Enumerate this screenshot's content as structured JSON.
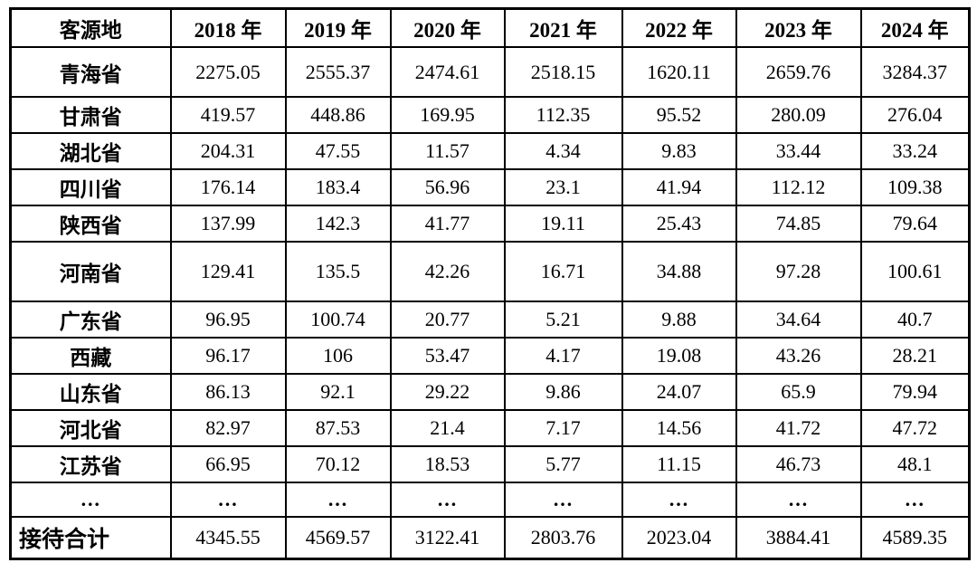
{
  "table": {
    "header": {
      "region_label": "客源地",
      "years": [
        "2018 年",
        "2019 年",
        "2020 年",
        "2021 年",
        "2022 年",
        "2023 年",
        "2024 年"
      ]
    },
    "rows": [
      {
        "region": "青海省",
        "values": [
          "2275.05",
          "2555.37",
          "2474.61",
          "2518.15",
          "1620.11",
          "2659.76",
          "3284.37"
        ]
      },
      {
        "region": "甘肃省",
        "values": [
          "419.57",
          "448.86",
          "169.95",
          "112.35",
          "95.52",
          "280.09",
          "276.04"
        ]
      },
      {
        "region": "湖北省",
        "values": [
          "204.31",
          "47.55",
          "11.57",
          "4.34",
          "9.83",
          "33.44",
          "33.24"
        ]
      },
      {
        "region": "四川省",
        "values": [
          "176.14",
          "183.4",
          "56.96",
          "23.1",
          "41.94",
          "112.12",
          "109.38"
        ]
      },
      {
        "region": "陕西省",
        "values": [
          "137.99",
          "142.3",
          "41.77",
          "19.11",
          "25.43",
          "74.85",
          "79.64"
        ]
      },
      {
        "region": "河南省",
        "values": [
          "129.41",
          "135.5",
          "42.26",
          "16.71",
          "34.88",
          "97.28",
          "100.61"
        ]
      },
      {
        "region": "广东省",
        "values": [
          "96.95",
          "100.74",
          "20.77",
          "5.21",
          "9.88",
          "34.64",
          "40.7"
        ]
      },
      {
        "region": "西藏",
        "values": [
          "96.17",
          "106",
          "53.47",
          "4.17",
          "19.08",
          "43.26",
          "28.21"
        ]
      },
      {
        "region": "山东省",
        "values": [
          "86.13",
          "92.1",
          "29.22",
          "9.86",
          "24.07",
          "65.9",
          "79.94"
        ]
      },
      {
        "region": "河北省",
        "values": [
          "82.97",
          "87.53",
          "21.4",
          "7.17",
          "14.56",
          "41.72",
          "47.72"
        ]
      },
      {
        "region": "江苏省",
        "values": [
          "66.95",
          "70.12",
          "18.53",
          "5.77",
          "11.15",
          "46.73",
          "48.1"
        ]
      },
      {
        "region": "…",
        "values": [
          "…",
          "…",
          "…",
          "…",
          "…",
          "…",
          "…"
        ]
      }
    ],
    "total_row": {
      "label": "接待合计",
      "values": [
        "4345.55",
        "4569.57",
        "3122.41",
        "2803.76",
        "2023.04",
        "3884.41",
        "4589.35"
      ]
    }
  },
  "colors": {
    "border": "#000000",
    "text": "#000000",
    "background": "#ffffff"
  }
}
